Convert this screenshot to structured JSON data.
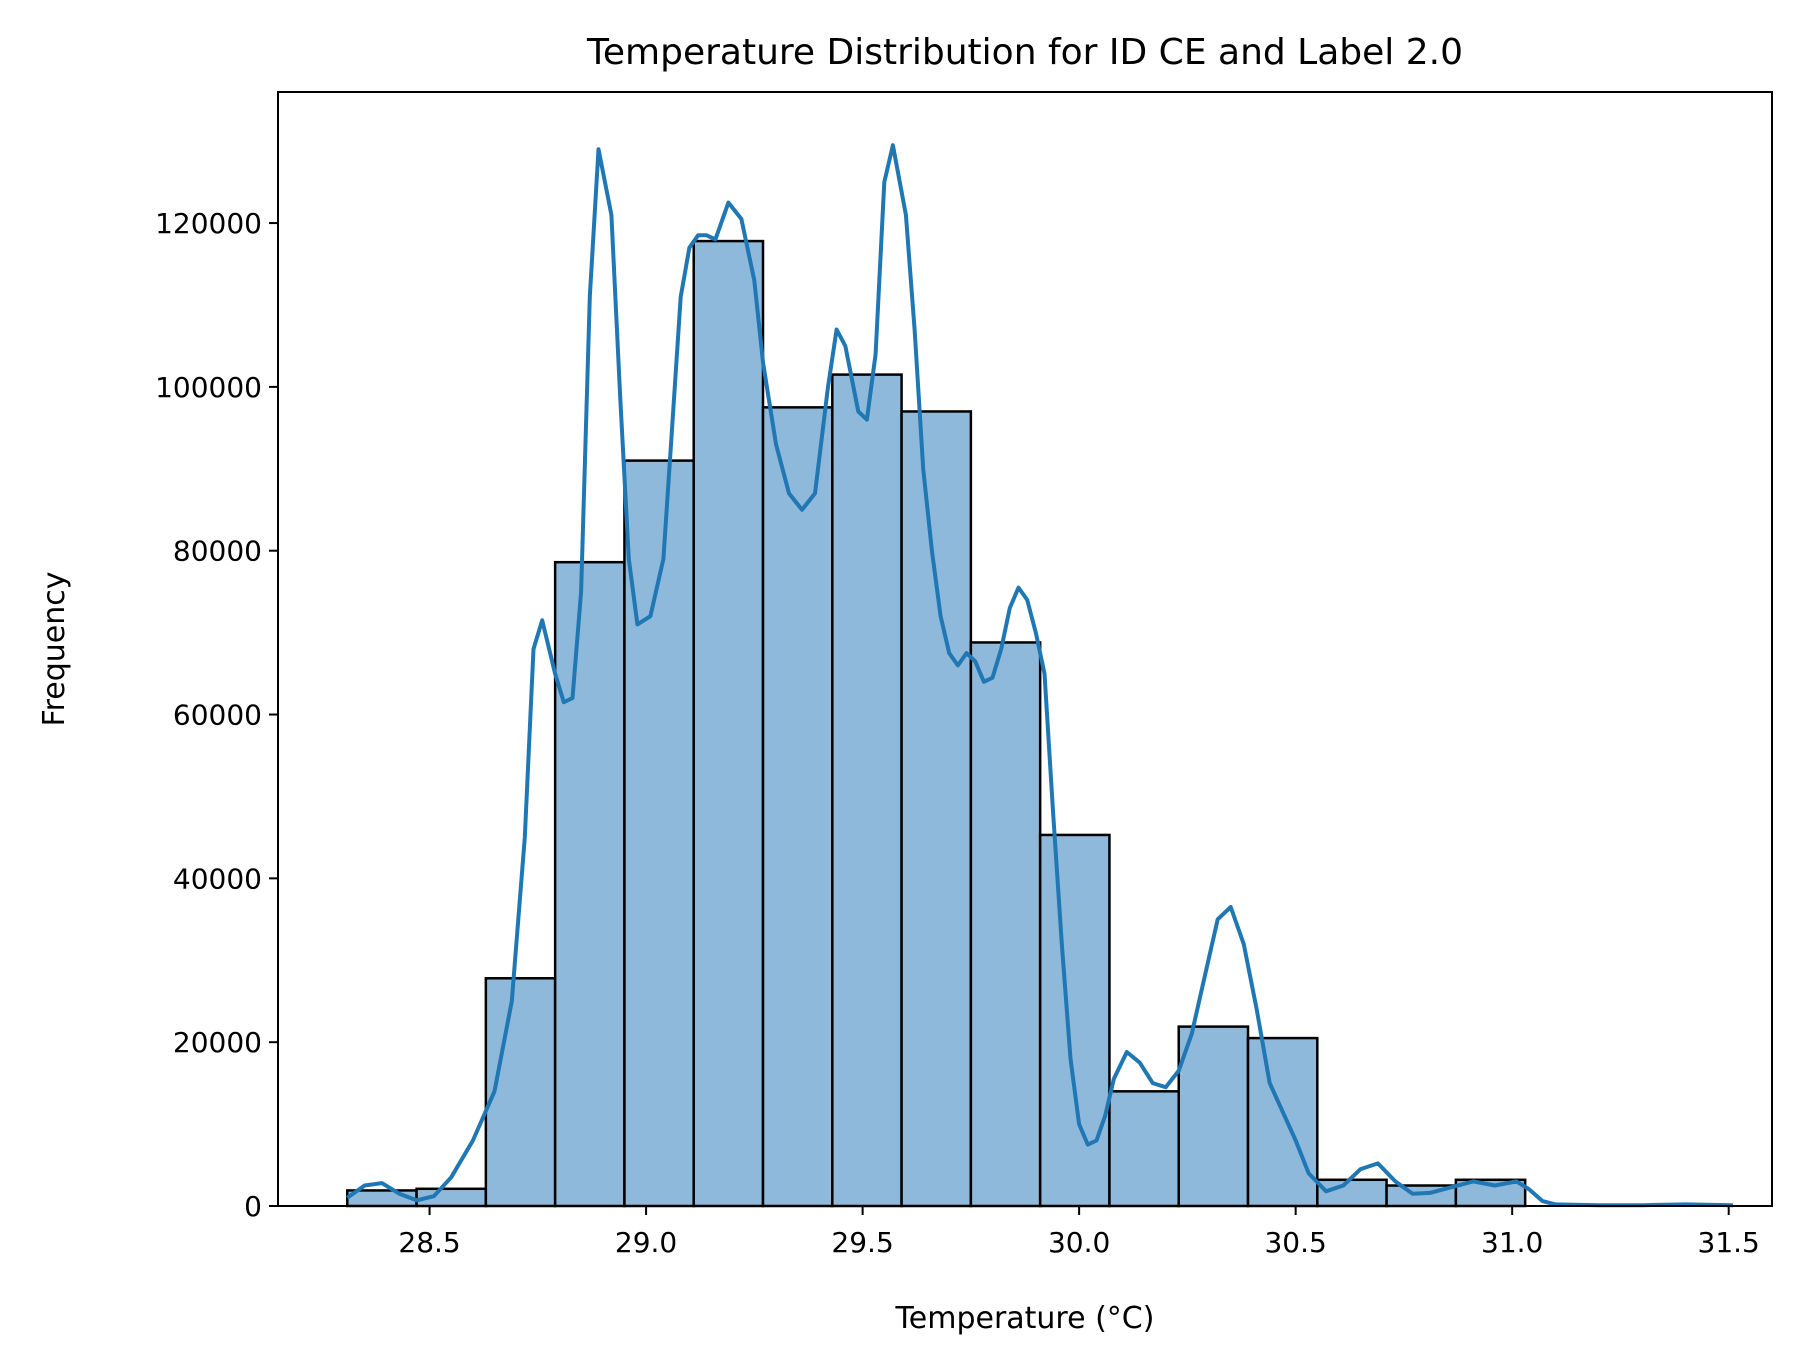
{
  "chart_data": {
    "type": "bar",
    "title": "Temperature Distribution for ID CE and Label 2.0",
    "xlabel": "Temperature (°C)",
    "ylabel": "Frequency",
    "xlim": [
      28.15,
      31.6
    ],
    "ylim": [
      0,
      136000
    ],
    "xticks": [
      28.5,
      29.0,
      29.5,
      30.0,
      30.5,
      31.0,
      31.5
    ],
    "xtick_labels": [
      "28.5",
      "29.0",
      "29.5",
      "30.0",
      "30.5",
      "31.0",
      "31.5"
    ],
    "yticks": [
      0,
      20000,
      40000,
      60000,
      80000,
      100000,
      120000
    ],
    "ytick_labels": [
      "0",
      "20000",
      "40000",
      "60000",
      "80000",
      "100000",
      "120000"
    ],
    "grid": false,
    "bar_fill": "#8fb9da",
    "bar_edge": "#000000",
    "kde_color": "#1f77b4",
    "bins": [
      {
        "x0": 28.31,
        "x1": 28.47,
        "value": 1900
      },
      {
        "x0": 28.47,
        "x1": 28.63,
        "value": 2100
      },
      {
        "x0": 28.63,
        "x1": 28.79,
        "value": 27800
      },
      {
        "x0": 28.79,
        "x1": 28.95,
        "value": 78600
      },
      {
        "x0": 28.95,
        "x1": 29.11,
        "value": 91000
      },
      {
        "x0": 29.11,
        "x1": 29.27,
        "value": 117800
      },
      {
        "x0": 29.27,
        "x1": 29.43,
        "value": 97500
      },
      {
        "x0": 29.43,
        "x1": 29.59,
        "value": 101500
      },
      {
        "x0": 29.59,
        "x1": 29.75,
        "value": 97000
      },
      {
        "x0": 29.75,
        "x1": 29.91,
        "value": 68800
      },
      {
        "x0": 29.91,
        "x1": 30.07,
        "value": 45300
      },
      {
        "x0": 30.07,
        "x1": 30.23,
        "value": 14000
      },
      {
        "x0": 30.23,
        "x1": 30.39,
        "value": 21900
      },
      {
        "x0": 30.39,
        "x1": 30.55,
        "value": 20500
      },
      {
        "x0": 30.55,
        "x1": 30.71,
        "value": 3200
      },
      {
        "x0": 30.71,
        "x1": 30.87,
        "value": 2500
      },
      {
        "x0": 30.87,
        "x1": 31.03,
        "value": 3200
      }
    ],
    "kde": {
      "x": [
        28.31,
        28.35,
        28.39,
        28.43,
        28.47,
        28.51,
        28.55,
        28.6,
        28.65,
        28.69,
        28.72,
        28.74,
        28.76,
        28.79,
        28.81,
        28.83,
        28.85,
        28.87,
        28.89,
        28.92,
        28.94,
        28.96,
        28.98,
        29.01,
        29.04,
        29.06,
        29.08,
        29.1,
        29.12,
        29.14,
        29.16,
        29.19,
        29.22,
        29.25,
        29.27,
        29.3,
        29.33,
        29.36,
        29.39,
        29.42,
        29.44,
        29.46,
        29.49,
        29.51,
        29.53,
        29.55,
        29.57,
        29.6,
        29.62,
        29.64,
        29.66,
        29.68,
        29.7,
        29.72,
        29.74,
        29.76,
        29.78,
        29.8,
        29.82,
        29.84,
        29.86,
        29.88,
        29.9,
        29.92,
        29.94,
        29.96,
        29.98,
        30.0,
        30.02,
        30.04,
        30.06,
        30.08,
        30.11,
        30.14,
        30.17,
        30.2,
        30.23,
        30.26,
        30.29,
        30.32,
        30.35,
        30.38,
        30.41,
        30.44,
        30.47,
        30.5,
        30.53,
        30.57,
        30.61,
        30.65,
        30.69,
        30.73,
        30.77,
        30.81,
        30.86,
        30.91,
        30.96,
        31.01,
        31.04,
        31.07,
        31.1,
        31.2,
        31.3,
        31.4,
        31.51
      ],
      "y": [
        1000,
        2500,
        2800,
        1500,
        700,
        1200,
        3500,
        8000,
        14000,
        25000,
        45000,
        68000,
        71500,
        65000,
        61500,
        62000,
        75000,
        111000,
        129000,
        121000,
        99000,
        79000,
        71000,
        72000,
        79000,
        95000,
        111000,
        117000,
        118500,
        118500,
        118000,
        122500,
        120500,
        113000,
        103000,
        93000,
        87000,
        85000,
        87000,
        100000,
        107000,
        105000,
        97000,
        96000,
        104000,
        125000,
        129500,
        121000,
        107000,
        90000,
        80000,
        72000,
        67500,
        66000,
        67500,
        66500,
        64000,
        64500,
        68000,
        73000,
        75500,
        74000,
        70000,
        65000,
        48000,
        32000,
        18000,
        10000,
        7500,
        8000,
        11000,
        15500,
        18800,
        17500,
        15000,
        14500,
        16500,
        21000,
        28000,
        35000,
        36500,
        32000,
        24000,
        15000,
        11500,
        8000,
        4000,
        1800,
        2500,
        4500,
        5200,
        3000,
        1500,
        1600,
        2300,
        3000,
        2500,
        3000,
        2000,
        600,
        200,
        100,
        100,
        200,
        100
      ]
    }
  }
}
